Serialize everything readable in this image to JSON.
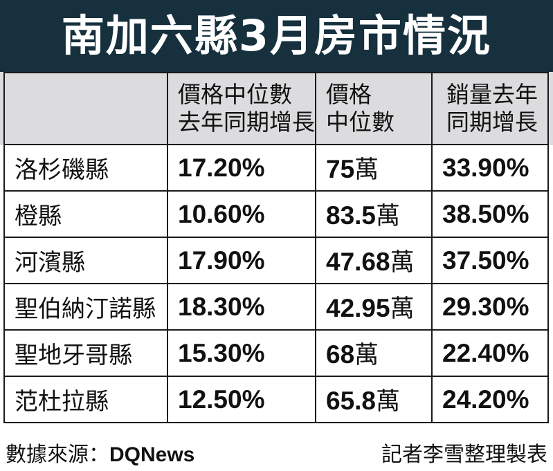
{
  "title": "南加六縣3月房市情況",
  "chart_data": {
    "type": "table",
    "title": "南加六縣3月房市情況",
    "columns": [
      {
        "line1": "價格中位數",
        "line2": "去年同期增長"
      },
      {
        "line1": "價格",
        "line2": "中位數"
      },
      {
        "line1": "銷量去年",
        "line2": "同期增長"
      }
    ],
    "unit_suffix": "萬",
    "rows": [
      {
        "county": "洛杉磯縣",
        "price_growth": "17.20%",
        "median_price": "75",
        "sales_growth": "33.90%"
      },
      {
        "county": "橙縣",
        "price_growth": "10.60%",
        "median_price": "83.5",
        "sales_growth": "38.50%"
      },
      {
        "county": "河濱縣",
        "price_growth": "17.90%",
        "median_price": "47.68",
        "sales_growth": "37.50%"
      },
      {
        "county": "聖伯納汀諾縣",
        "price_growth": "18.30%",
        "median_price": "42.95",
        "sales_growth": "29.30%"
      },
      {
        "county": "聖地牙哥縣",
        "price_growth": "15.30%",
        "median_price": "68",
        "sales_growth": "22.40%"
      },
      {
        "county": "范杜拉縣",
        "price_growth": "12.50%",
        "median_price": "65.8",
        "sales_growth": "24.20%"
      }
    ]
  },
  "footer": {
    "source_label": "數據來源：",
    "source_name": "DQNews",
    "credit": "記者李雪整理製表"
  },
  "colors": {
    "title_bg": "#16303d",
    "header_bg": "#dcdcde",
    "border": "#1a1a1a"
  }
}
